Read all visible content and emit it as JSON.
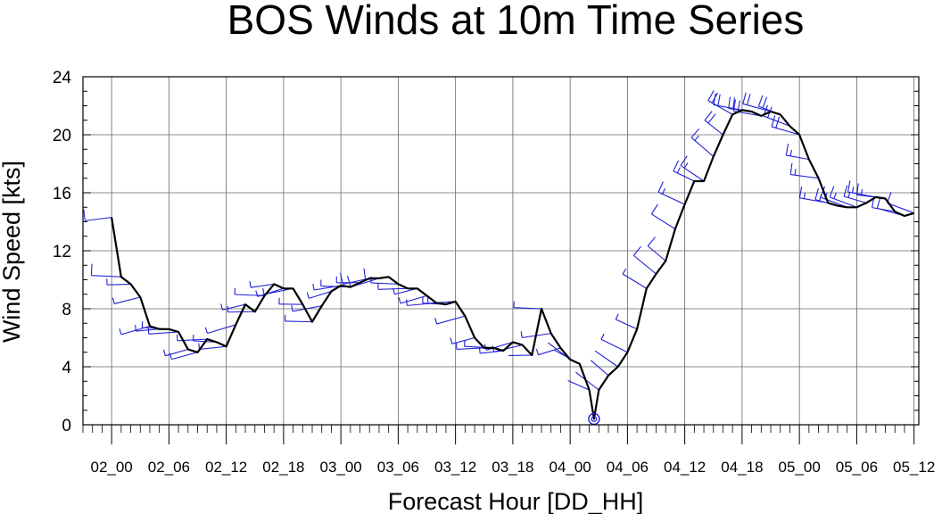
{
  "chart_data": {
    "type": "line",
    "title": "BOS Winds at 10m Time Series",
    "xlabel": "Forecast Hour [DD_HH]",
    "ylabel": "Wind Speed [kts]",
    "x_tick_labels": [
      "02_00",
      "02_06",
      "02_12",
      "02_18",
      "03_00",
      "03_06",
      "03_12",
      "03_18",
      "04_00",
      "04_06",
      "04_12",
      "04_18",
      "05_00",
      "05_06",
      "05_12"
    ],
    "x_tick_hours": [
      0,
      6,
      12,
      18,
      24,
      30,
      36,
      42,
      48,
      54,
      60,
      66,
      72,
      78,
      84
    ],
    "xlim": [
      -3,
      84.5
    ],
    "y_ticks": [
      0,
      4,
      8,
      12,
      16,
      20,
      24
    ],
    "ylim": [
      0,
      24
    ],
    "grid": true,
    "wind_barbs": true,
    "calm_marker_hour": 50.5,
    "colors": {
      "line": "#000000",
      "barbs": "#1f1fd8",
      "grid": "#666666"
    },
    "series": [
      {
        "hours": [
          0,
          1,
          2,
          3,
          4,
          5,
          6,
          7,
          8,
          9,
          10,
          11,
          12,
          13,
          14,
          15,
          16,
          17,
          18,
          19,
          20,
          21,
          22,
          23,
          24,
          25,
          26,
          27,
          28,
          29,
          30,
          31,
          32,
          33,
          34,
          35,
          36,
          37,
          38,
          39,
          40,
          41,
          42,
          43,
          44,
          45,
          46,
          47,
          48,
          49,
          50,
          50.5,
          51,
          52,
          53,
          54,
          55,
          56,
          57,
          58,
          59,
          60,
          61,
          62,
          63,
          64,
          65,
          66,
          67,
          68,
          69,
          70,
          71,
          72,
          73,
          74,
          75,
          76,
          77,
          78,
          79,
          80,
          81,
          82,
          83,
          84
        ],
        "values": [
          14.3,
          10.2,
          9.7,
          8.8,
          6.8,
          6.6,
          6.6,
          6.4,
          5.2,
          5.0,
          5.9,
          5.7,
          5.4,
          6.9,
          8.3,
          7.8,
          8.9,
          9.7,
          9.4,
          9.4,
          8.3,
          7.1,
          8.2,
          9.2,
          9.6,
          9.5,
          9.8,
          10.1,
          10.1,
          10.2,
          9.7,
          9.4,
          9.4,
          8.9,
          8.4,
          8.3,
          8.5,
          7.5,
          6.0,
          5.3,
          5.3,
          5.1,
          5.7,
          5.5,
          4.8,
          8.0,
          6.3,
          5.3,
          4.5,
          4.2,
          2.4,
          0.4,
          2.4,
          3.4,
          4.0,
          5.0,
          6.6,
          9.4,
          10.4,
          11.3,
          13.5,
          15.2,
          16.8,
          16.8,
          18.5,
          20.0,
          21.4,
          21.7,
          21.6,
          21.3,
          21.6,
          21.4,
          20.6,
          20.0,
          18.3,
          17.0,
          15.3,
          15.1,
          15.0,
          15.0,
          15.3,
          15.7,
          15.6,
          14.7,
          14.4,
          14.6
        ]
      }
    ]
  }
}
